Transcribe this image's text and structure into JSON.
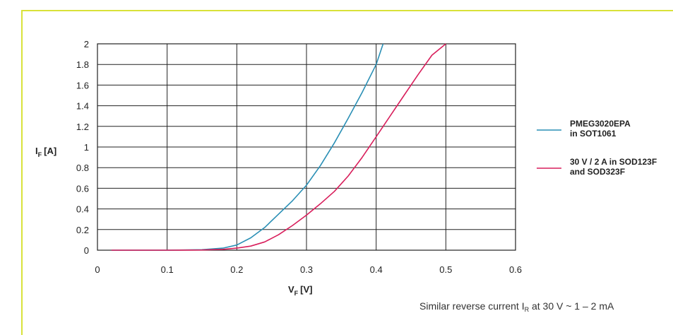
{
  "chart_data": {
    "type": "line",
    "xlabel": {
      "main": "V",
      "sub": "F",
      "unit": "[V]"
    },
    "ylabel": {
      "main": "I",
      "sub": "F",
      "unit": "[A]"
    },
    "xlim": [
      0,
      0.6
    ],
    "ylim": [
      0,
      2
    ],
    "x_ticks": [
      "0",
      "0.1",
      "0.2",
      "0.3",
      "0.4",
      "0.5",
      "0.6"
    ],
    "y_ticks": [
      "0",
      "0.2",
      "0.4",
      "0.6",
      "0.8",
      "1",
      "1.2",
      "1.4",
      "1.6",
      "1.8",
      "2"
    ],
    "grid": true,
    "legend_position": "right",
    "series": [
      {
        "name_lines": [
          "PMEG3020EPA",
          "in SOT1061"
        ],
        "color": "#2a8fb5",
        "points": [
          [
            0.02,
            0
          ],
          [
            0.1,
            0
          ],
          [
            0.15,
            0.005
          ],
          [
            0.18,
            0.02
          ],
          [
            0.2,
            0.05
          ],
          [
            0.22,
            0.12
          ],
          [
            0.24,
            0.22
          ],
          [
            0.26,
            0.35
          ],
          [
            0.28,
            0.48
          ],
          [
            0.3,
            0.63
          ],
          [
            0.32,
            0.82
          ],
          [
            0.34,
            1.04
          ],
          [
            0.36,
            1.28
          ],
          [
            0.38,
            1.53
          ],
          [
            0.4,
            1.8
          ],
          [
            0.41,
            2.0
          ]
        ]
      },
      {
        "name_lines": [
          "30 V / 2 A in SOD123F",
          "and SOD323F"
        ],
        "color": "#d81e5b",
        "points": [
          [
            0.02,
            0
          ],
          [
            0.1,
            0
          ],
          [
            0.15,
            0.002
          ],
          [
            0.18,
            0.008
          ],
          [
            0.2,
            0.02
          ],
          [
            0.22,
            0.04
          ],
          [
            0.24,
            0.08
          ],
          [
            0.26,
            0.15
          ],
          [
            0.28,
            0.24
          ],
          [
            0.3,
            0.34
          ],
          [
            0.32,
            0.45
          ],
          [
            0.34,
            0.57
          ],
          [
            0.36,
            0.72
          ],
          [
            0.38,
            0.9
          ],
          [
            0.4,
            1.1
          ],
          [
            0.42,
            1.3
          ],
          [
            0.44,
            1.5
          ],
          [
            0.46,
            1.7
          ],
          [
            0.48,
            1.89
          ],
          [
            0.5,
            2.0
          ]
        ]
      }
    ],
    "annotation": {
      "prefix": "Similar reverse current I",
      "sub": "R",
      "suffix": " at 30 V ~ 1 – 2 mA"
    }
  }
}
